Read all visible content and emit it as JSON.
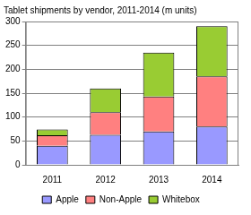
{
  "chart_data": {
    "type": "bar",
    "title": "Tablet shipments by vendor, 2011-2014 (m units)",
    "categories": [
      "2011",
      "2012",
      "2013",
      "2014"
    ],
    "series": [
      {
        "name": "Apple",
        "color": "#9999ff",
        "values": [
          40,
          63,
          70,
          80
        ]
      },
      {
        "name": "Non-Apple",
        "color": "#ff8080",
        "values": [
          22,
          47,
          73,
          105
        ]
      },
      {
        "name": "Whitebox",
        "color": "#99cc33",
        "values": [
          12,
          50,
          92,
          105
        ]
      }
    ],
    "ylim": [
      0,
      300
    ],
    "yticks": [
      0,
      50,
      100,
      150,
      200,
      250,
      300
    ],
    "stacked": true,
    "grid": true,
    "legend": "bottom"
  }
}
